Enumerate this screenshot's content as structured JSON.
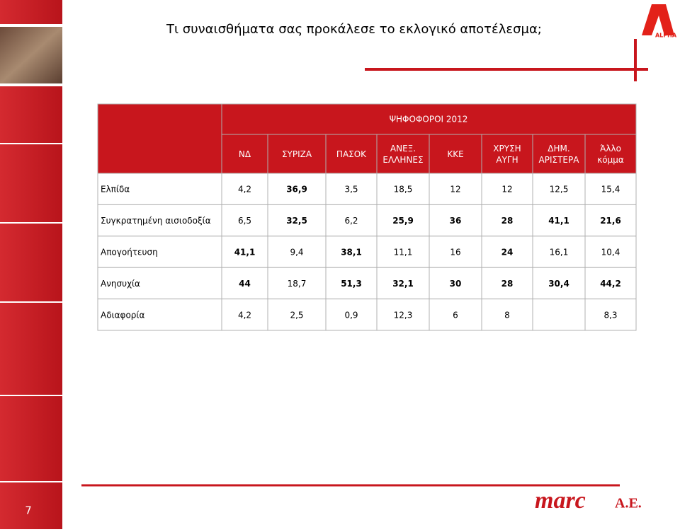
{
  "header": {
    "title": "Τι συναισθήματα σας προκάλεσε το εκλογικό αποτέλεσμα;",
    "logo": "ALPHA"
  },
  "table": {
    "group_header": "ΨΗΦΟΦΟΡΟΙ 2012",
    "columns": [
      "ΝΔ",
      "ΣΥΡΙΖΑ",
      "ΠΑΣΟΚ",
      "ΑΝΕΞ. ΕΛΛΗΝΕΣ",
      "ΚΚΕ",
      "ΧΡΥΣΗ ΑΥΓΗ",
      "ΔΗΜ. ΑΡΙΣΤΕΡΑ",
      "Άλλο κόμμα"
    ],
    "rows": [
      {
        "label": "Ελπίδα",
        "values": [
          "4,2",
          "36,9",
          "3,5",
          "18,5",
          "12",
          "12",
          "12,5",
          "15,4"
        ],
        "bold": [
          false,
          true,
          false,
          false,
          false,
          false,
          false,
          false
        ]
      },
      {
        "label": "Συγκρατημένη αισιοδοξία",
        "values": [
          "6,5",
          "32,5",
          "6,2",
          "25,9",
          "36",
          "28",
          "41,1",
          "21,6"
        ],
        "bold": [
          false,
          true,
          false,
          true,
          true,
          true,
          true,
          true
        ]
      },
      {
        "label": "Απογοήτευση",
        "values": [
          "41,1",
          "9,4",
          "38,1",
          "11,1",
          "16",
          "24",
          "16,1",
          "10,4"
        ],
        "bold": [
          true,
          false,
          true,
          false,
          false,
          true,
          false,
          false
        ]
      },
      {
        "label": "Ανησυχία",
        "values": [
          "44",
          "18,7",
          "51,3",
          "32,1",
          "30",
          "28",
          "30,4",
          "44,2"
        ],
        "bold": [
          true,
          false,
          true,
          true,
          true,
          true,
          true,
          true
        ]
      },
      {
        "label": "Αδιαφορία",
        "values": [
          "4,2",
          "2,5",
          "0,9",
          "12,3",
          "6",
          "8",
          null,
          "8,3"
        ],
        "bold": [
          false,
          false,
          false,
          false,
          false,
          false,
          false,
          false
        ]
      }
    ]
  },
  "footer": {
    "page": "7",
    "brand": "marc",
    "brand_suffix": "A.E."
  }
}
